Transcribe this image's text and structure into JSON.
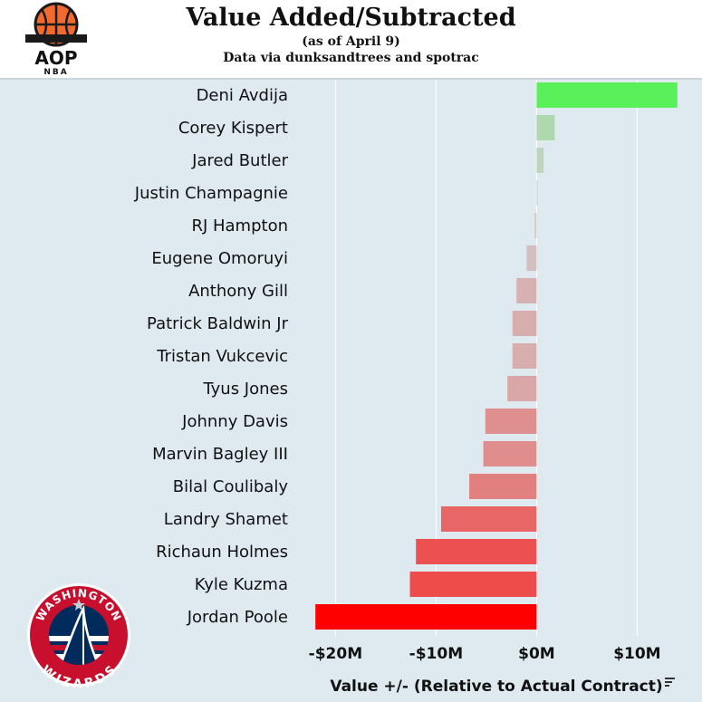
{
  "header": {
    "title": "Value Added/Subtracted",
    "subtitle": "(as of April 9)",
    "source": "Data via dunksandtrees and spotrac"
  },
  "logos": {
    "aop_text": "AOP",
    "aop_subtext": "NBA",
    "team_top": "WASHINGTON",
    "team_bottom": "WIZARDS"
  },
  "colors": {
    "background": "#deeaf0",
    "positive_max": "#59f059",
    "negative_max": "#ff0000",
    "gridline": "#ffffff"
  },
  "chart_data": {
    "type": "bar",
    "orientation": "horizontal",
    "categories": [
      "Deni Avdija",
      "Corey Kispert",
      "Jared Butler",
      "Justin Champagnie",
      "RJ Hampton",
      "Eugene Omoruyi",
      "Anthony Gill",
      "Patrick Baldwin Jr",
      "Tristan Vukcevic",
      "Tyus Jones",
      "Johnny Davis",
      "Marvin Bagley III",
      "Bilal Coulibaly",
      "Landry Shamet",
      "Richaun Holmes",
      "Kyle Kuzma",
      "Jordan Poole"
    ],
    "values": [
      14.0,
      1.8,
      0.7,
      0.1,
      -0.2,
      -1.0,
      -2.0,
      -2.4,
      -2.4,
      -2.9,
      -5.1,
      -5.3,
      -6.7,
      -9.5,
      -12.0,
      -12.6,
      -22.0
    ],
    "xlim": [
      -24,
      16
    ],
    "xticks": [
      -20,
      -10,
      0,
      10
    ],
    "xtick_labels": [
      "-$20M",
      "-$10M",
      "$0M",
      "$10M"
    ],
    "xlabel": "Value +/- (Relative to Actual Contract)",
    "unit": "millions USD",
    "grid": "vertical",
    "title": "Value Added/Subtracted"
  }
}
